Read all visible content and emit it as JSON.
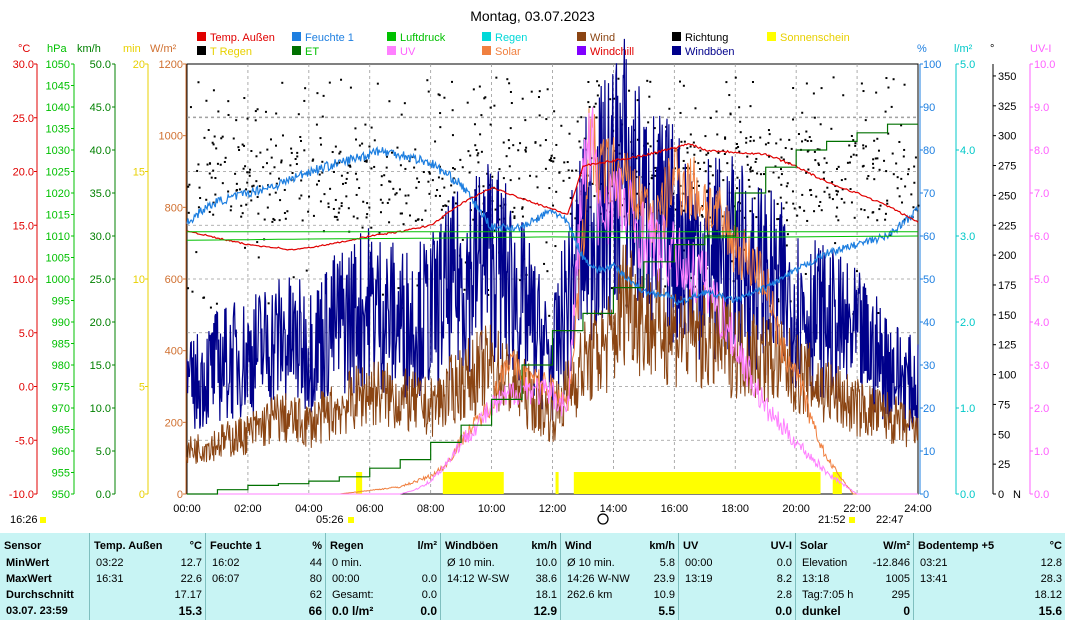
{
  "title": "Montag, 03.07.2023",
  "legend": [
    {
      "label": "Temp. Außen",
      "color": "#e00000",
      "text": "#e00000"
    },
    {
      "label": "Feuchte 1",
      "color": "#1e7fe0",
      "text": "#1e7fe0"
    },
    {
      "label": "Luftdruck",
      "color": "#00c000",
      "text": "#00c000"
    },
    {
      "label": "Regen",
      "color": "#00d8d8",
      "text": "#00d8d8"
    },
    {
      "label": "Wind",
      "color": "#8b4513",
      "text": "#8b4513"
    },
    {
      "label": "Richtung",
      "color": "#000000",
      "text": "#000000"
    },
    {
      "label": "Sonnenschein",
      "color": "#ffff00",
      "text": "#e8d000"
    },
    {
      "label": "T Regen",
      "color": "#000000",
      "text": "#e8d000"
    },
    {
      "label": "ET",
      "color": "#007000",
      "text": "#00c000"
    },
    {
      "label": "UV",
      "color": "#ff80ff",
      "text": "#ff60ff"
    },
    {
      "label": "Solar",
      "color": "#f08040",
      "text": "#f08040"
    },
    {
      "label": "Windchill",
      "color": "#8000ff",
      "text": "#e00000"
    },
    {
      "label": "Windböen",
      "color": "#00008b",
      "text": "#00008b"
    }
  ],
  "axis_headers": {
    "temp": "°C",
    "hpa": "hPa",
    "kmh": "km/h",
    "min": "min",
    "wm2": "W/m²",
    "pct": "%",
    "lm2": "l/m²",
    "deg": "°",
    "uvi": "UV-I"
  },
  "axis_colors": {
    "temp": "#e00000",
    "hpa": "#00c000",
    "kmh": "#008000",
    "min": "#e8d000",
    "wm2": "#d07030",
    "pct": "#1e7fe0",
    "lm2": "#00c8c8",
    "deg": "#000000",
    "uvi": "#ff60ff"
  },
  "chart_data": {
    "type": "line",
    "x_ticks": [
      "00:00",
      "02:00",
      "04:00",
      "06:00",
      "08:00",
      "10:00",
      "12:00",
      "14:00",
      "16:00",
      "18:00",
      "20:00",
      "22:00",
      "24:00"
    ],
    "axes": {
      "temp": {
        "ticks": [
          "30.0",
          "25.0",
          "20.0",
          "15.0",
          "10.0",
          "5.0",
          "0.0",
          "-5.0",
          "-10.0"
        ],
        "range": [
          -10,
          30
        ]
      },
      "hpa": {
        "ticks": [
          "1050",
          "1045",
          "1040",
          "1035",
          "1030",
          "1025",
          "1020",
          "1015",
          "1010",
          "1005",
          "1000",
          "995",
          "990",
          "985",
          "980",
          "975",
          "970",
          "965",
          "960",
          "955",
          "950"
        ],
        "range": [
          950,
          1050
        ]
      },
      "kmh": {
        "ticks": [
          "50.0",
          "45.0",
          "40.0",
          "35.0",
          "30.0",
          "25.0",
          "20.0",
          "15.0",
          "10.0",
          "5.0",
          "0.0"
        ],
        "range": [
          0,
          50
        ]
      },
      "min": {
        "ticks": [
          "20",
          "15",
          "10",
          "5",
          "0"
        ],
        "range": [
          0,
          20
        ]
      },
      "wm2": {
        "ticks": [
          "1200",
          "1000",
          "800",
          "600",
          "400",
          "200",
          "0"
        ],
        "range": [
          0,
          1200
        ]
      },
      "pct": {
        "ticks": [
          "100",
          "90",
          "80",
          "70",
          "60",
          "50",
          "40",
          "30",
          "20",
          "10",
          "0"
        ],
        "range": [
          0,
          100
        ]
      },
      "lm2": {
        "ticks": [
          "5.0",
          "4.0",
          "3.0",
          "2.0",
          "1.0",
          "0.0"
        ],
        "range": [
          0,
          5
        ]
      },
      "deg": {
        "ticks": [
          "350",
          "325",
          "300",
          "275",
          "250",
          "225",
          "200",
          "175",
          "150",
          "125",
          "100",
          "75",
          "50",
          "25",
          "0"
        ],
        "range": [
          0,
          360
        ]
      },
      "uvi": {
        "ticks": [
          "10.0",
          "9.0",
          "8.0",
          "7.0",
          "6.0",
          "5.0",
          "4.0",
          "3.0",
          "2.0",
          "1.0",
          "0.0"
        ],
        "range": [
          0,
          10
        ]
      }
    },
    "series": [
      {
        "name": "Temp. Außen",
        "unit": "°C",
        "x": [
          0,
          1,
          2,
          3,
          3.37,
          4,
          5,
          6,
          7,
          8,
          9,
          10,
          11,
          12,
          12.5,
          13,
          14,
          15,
          16,
          16.52,
          17,
          18,
          19,
          20,
          21,
          22,
          23,
          24
        ],
        "y": [
          14.5,
          13.8,
          13.2,
          12.9,
          12.7,
          12.9,
          13.4,
          14.0,
          14.4,
          15.0,
          17.0,
          18.5,
          17.5,
          16.5,
          16.0,
          20.5,
          21.0,
          21.5,
          22.2,
          22.6,
          22.0,
          21.8,
          21.6,
          20.5,
          19.0,
          18.0,
          16.8,
          15.3
        ]
      },
      {
        "name": "Feuchte 1",
        "unit": "%",
        "x": [
          0,
          0.5,
          1,
          2,
          3,
          4,
          5,
          6,
          6.12,
          7,
          8,
          9,
          10,
          11,
          12,
          12.5,
          13,
          13.5,
          14,
          15,
          16,
          16.03,
          17,
          18,
          19,
          20,
          21,
          22,
          23,
          24
        ],
        "y": [
          63,
          66,
          68,
          70,
          72,
          75,
          77,
          79,
          80,
          79,
          77,
          72,
          62,
          62,
          66,
          63,
          55,
          52,
          53,
          47,
          46,
          44,
          47,
          45,
          48,
          52,
          56,
          58,
          60,
          66
        ]
      },
      {
        "name": "Luftdruck",
        "unit": "hPa",
        "x": [
          0,
          4,
          8,
          12,
          16,
          20,
          24
        ],
        "y": [
          1011,
          1011,
          1011,
          1011,
          1011,
          1011,
          1011
        ]
      },
      {
        "name": "Luftdruck (2)",
        "unit": "hPa",
        "x": [
          0,
          4,
          8,
          12,
          16,
          20,
          24
        ],
        "y": [
          1009,
          1009.3,
          1009.5,
          1009.8,
          1009.5,
          1009.8,
          1010
        ]
      },
      {
        "name": "ET",
        "unit": "l/m²",
        "x": [
          0,
          1,
          2,
          3,
          4,
          5,
          6,
          7,
          8,
          9,
          10,
          11,
          12,
          13,
          14,
          15,
          16,
          17,
          18,
          19,
          20,
          21,
          22,
          23,
          24
        ],
        "y": [
          0,
          0.05,
          0.1,
          0.12,
          0.15,
          0.2,
          0.3,
          0.4,
          0.6,
          0.8,
          1.1,
          1.5,
          1.9,
          2.1,
          2.4,
          2.7,
          2.9,
          3.0,
          3.5,
          3.8,
          4.0,
          4.1,
          4.2,
          4.3,
          4.3
        ]
      },
      {
        "name": "Solar",
        "unit": "W/m²",
        "x": [
          0,
          5,
          5.5,
          6,
          7,
          8,
          8.5,
          9,
          10,
          10.5,
          11,
          12,
          12.5,
          13,
          13.2,
          13.5,
          14,
          15,
          15.5,
          16,
          17,
          18,
          18.5,
          19,
          19.5,
          20,
          20.5,
          21,
          21.87
        ],
        "y": [
          0,
          0,
          5,
          10,
          20,
          50,
          80,
          150,
          250,
          380,
          330,
          300,
          250,
          700,
          1005,
          900,
          900,
          800,
          760,
          900,
          820,
          700,
          650,
          600,
          400,
          350,
          200,
          100,
          0
        ]
      },
      {
        "name": "UV",
        "unit": "UV-I",
        "x": [
          0,
          7,
          7.5,
          8,
          8.5,
          9,
          10,
          11,
          12,
          12.5,
          13,
          13.32,
          13.5,
          14,
          15,
          16,
          17,
          18,
          19,
          20,
          21,
          22,
          24
        ],
        "y": [
          0,
          0,
          0.1,
          0.3,
          0.7,
          1.2,
          2.0,
          2.5,
          2.3,
          2.0,
          7.5,
          8.2,
          6.5,
          7.0,
          6.0,
          5.5,
          5.0,
          3.5,
          2.0,
          1.2,
          0.5,
          0,
          0
        ]
      },
      {
        "name": "Wind",
        "unit": "km/h",
        "x": [
          0,
          1,
          2,
          3,
          4,
          5,
          6,
          7,
          8,
          9,
          10,
          11,
          12,
          13,
          14,
          14.43,
          15,
          16,
          17,
          18,
          19,
          20,
          21,
          22,
          23,
          24
        ],
        "y": [
          5,
          6,
          7,
          9,
          8,
          10,
          12,
          11,
          10,
          13,
          15,
          12,
          9,
          15,
          18,
          23.9,
          20,
          19,
          18,
          17,
          16,
          14,
          12,
          10,
          9,
          7
        ]
      },
      {
        "name": "Windböen",
        "unit": "km/h",
        "x": [
          0,
          1,
          2,
          3,
          4,
          5,
          6,
          7,
          8,
          9,
          10,
          11,
          12,
          13,
          14,
          14.2,
          15,
          16,
          17,
          18,
          19,
          20,
          21,
          22,
          23,
          24
        ],
        "y": [
          12,
          15,
          16,
          18,
          17,
          20,
          22,
          20,
          21,
          25,
          28,
          22,
          15,
          30,
          35,
          38.6,
          32,
          30,
          28,
          27,
          25,
          22,
          20,
          18,
          15,
          12
        ]
      }
    ],
    "sunshine_blocks": [
      [
        5.55,
        5.75
      ],
      [
        8.4,
        10.4
      ],
      [
        12.1,
        12.2
      ],
      [
        12.7,
        20.8
      ],
      [
        21.2,
        21.5
      ]
    ],
    "night_markers": {
      "left": "16:26",
      "sunrise": "05:26",
      "sunset": "21:52",
      "right": "22:47"
    }
  },
  "stats": {
    "columns": [
      {
        "header": "Sensor",
        "unit": "",
        "rows": [
          [
            "MinWert",
            "",
            ""
          ],
          [
            "MaxWert",
            "",
            ""
          ],
          [
            "Durchschnitt",
            "",
            ""
          ],
          [
            "03.07. 23:59",
            "",
            ""
          ]
        ]
      },
      {
        "header": "Temp. Außen",
        "unit": "°C",
        "rows": [
          [
            "03:22",
            "12.7"
          ],
          [
            "16:31",
            "22.6"
          ],
          [
            "",
            "17.17"
          ],
          [
            "",
            "15.3"
          ]
        ]
      },
      {
        "header": "Feuchte 1",
        "unit": "%",
        "rows": [
          [
            "16:02",
            "44"
          ],
          [
            "06:07",
            "80"
          ],
          [
            "",
            "62"
          ],
          [
            "",
            "66"
          ]
        ]
      },
      {
        "header": "Regen",
        "unit": "l/m²",
        "rows": [
          [
            "0 min.",
            ""
          ],
          [
            "00:00",
            "0.0"
          ],
          [
            "Gesamt:",
            "0.0"
          ],
          [
            "0.0 l/m²",
            "0.0"
          ]
        ]
      },
      {
        "header": "Windböen",
        "unit": "km/h",
        "rows": [
          [
            "Ø 10 min.",
            "10.0"
          ],
          [
            "14:12  W-SW",
            "38.6"
          ],
          [
            "",
            "18.1"
          ],
          [
            "",
            "12.9"
          ]
        ]
      },
      {
        "header": "Wind",
        "unit": "km/h",
        "rows": [
          [
            "Ø 10 min.",
            "5.8"
          ],
          [
            "14:26  W-NW",
            "23.9"
          ],
          [
            "262.6 km",
            "10.9"
          ],
          [
            "",
            "5.5"
          ]
        ]
      },
      {
        "header": "UV",
        "unit": "UV-I",
        "rows": [
          [
            "00:00",
            "0.0"
          ],
          [
            "13:19",
            "8.2"
          ],
          [
            "",
            "2.8"
          ],
          [
            "",
            "0.0"
          ]
        ]
      },
      {
        "header": "Solar",
        "unit": "W/m²",
        "rows": [
          [
            "Elevation",
            "-12.846"
          ],
          [
            "13:18",
            "1005"
          ],
          [
            "Tag:7:05 h",
            "295"
          ],
          [
            "dunkel",
            "0"
          ]
        ]
      },
      {
        "header": "Bodentemp +5",
        "unit": "°C",
        "rows": [
          [
            "03:21",
            "12.8"
          ],
          [
            "13:41",
            "28.3"
          ],
          [
            "",
            "18.12"
          ],
          [
            "",
            "15.6"
          ]
        ]
      }
    ]
  }
}
